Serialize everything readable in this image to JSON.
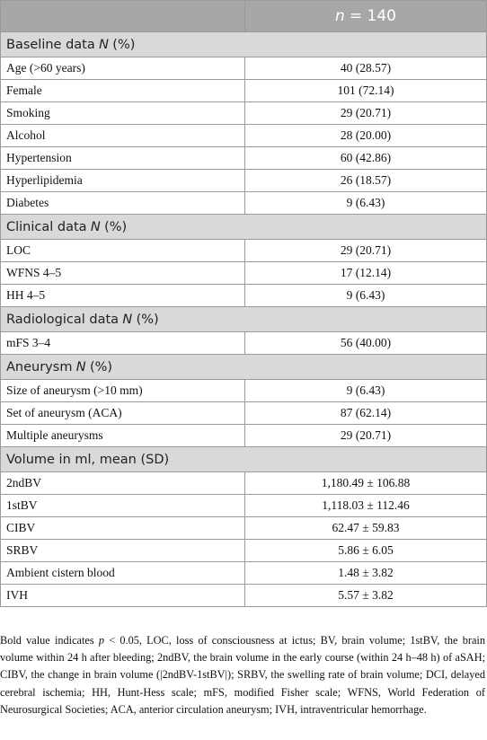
{
  "header": {
    "n": [
      "n",
      "= 140"
    ]
  },
  "sections": [
    {
      "title": [
        "Baseline data",
        "N",
        "(%)"
      ],
      "rows": [
        [
          "Age (>60 years)",
          "40 (28.57)"
        ],
        [
          "Female",
          "101 (72.14)"
        ],
        [
          "Smoking",
          "29 (20.71)"
        ],
        [
          "Alcohol",
          "28 (20.00)"
        ],
        [
          "Hypertension",
          "60 (42.86)"
        ],
        [
          "Hyperlipidemia",
          "26 (18.57)"
        ],
        [
          "Diabetes",
          "9 (6.43)"
        ]
      ]
    },
    {
      "title": [
        "Clinical data",
        "N",
        "(%)"
      ],
      "rows": [
        [
          "LOC",
          "29 (20.71)"
        ],
        [
          "WFNS 4–5",
          "17 (12.14)"
        ],
        [
          "HH 4–5",
          "9 (6.43)"
        ]
      ]
    },
    {
      "title": [
        "Radiological data",
        "N",
        "(%)"
      ],
      "rows": [
        [
          "mFS 3–4",
          "56 (40.00)"
        ]
      ]
    },
    {
      "title": [
        "Aneurysm",
        "N",
        "(%)"
      ],
      "rows": [
        [
          "Size of aneurysm (>10 mm)",
          "9 (6.43)"
        ],
        [
          "Set of aneurysm (ACA)",
          "87 (62.14)"
        ],
        [
          "Multiple aneurysms",
          "29 (20.71)"
        ]
      ]
    },
    {
      "title": [
        "Volume in ml, mean (SD)"
      ],
      "rows": [
        [
          "2ndBV",
          "1,180.49 ± 106.88"
        ],
        [
          "1stBV",
          "1,118.03 ± 112.46"
        ],
        [
          "CIBV",
          "62.47 ± 59.83"
        ],
        [
          "SRBV",
          "5.86 ± 6.05"
        ],
        [
          "Ambient cistern blood",
          "1.48 ± 3.82"
        ],
        [
          "IVH",
          "5.57 ± 3.82"
        ]
      ]
    }
  ],
  "footnote": [
    "Bold value indicates",
    "p",
    "< 0.05, LOC, loss of consciousness at ictus; BV, brain volume; 1stBV, the brain volume within 24 h after bleeding; 2ndBV, the brain volume in the early course (within 24 h–48 h) of aSAH; CIBV, the change in brain volume (|2ndBV-1stBV|); SRBV, the swelling rate of brain volume; DCI, delayed cerebral ischemia; HH, Hunt-Hess scale; mFS, modified Fisher scale; WFNS, World Federation of Neurosurgical Societies; ACA, anterior circulation aneurysm; IVH, intraventricular hemorrhage."
  ]
}
